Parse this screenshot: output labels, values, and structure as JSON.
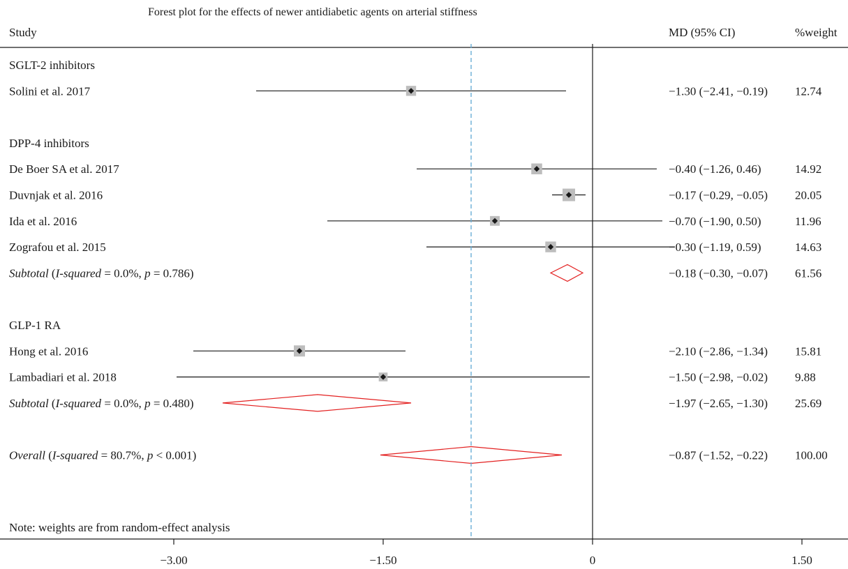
{
  "chart_data": {
    "type": "forest",
    "title": "Forest plot for the effects of newer antidiabetic agents on arterial stiffness",
    "columns": {
      "study": "Study",
      "effect": "MD (95% CI)",
      "weight": "%weight"
    },
    "x_ticks": [
      {
        "value": -3.0,
        "label": "−3.00"
      },
      {
        "value": -1.5,
        "label": "−1.50"
      },
      {
        "value": 0,
        "label": "0"
      },
      {
        "value": 1.5,
        "label": "1.50"
      }
    ],
    "xlim": [
      -4.5,
      2.2
    ],
    "overall_reference_line": -0.87,
    "rows": [
      {
        "kind": "header",
        "label": "SGLT-2 inhibitors"
      },
      {
        "kind": "study",
        "label": "Solini et al. 2017",
        "md": -1.3,
        "lo": -2.41,
        "hi": -0.19,
        "ci_text": "−1.30 (−2.41, −0.19)",
        "weight": "12.74"
      },
      {
        "kind": "blank"
      },
      {
        "kind": "header",
        "label": "DPP-4 inhibitors"
      },
      {
        "kind": "study",
        "label": " De Boer SA et al. 2017",
        "md": -0.4,
        "lo": -1.26,
        "hi": 0.46,
        "ci_text": "−0.40 (−1.26, 0.46)",
        "weight": "14.92"
      },
      {
        "kind": "study",
        "label": "Duvnjak et al. 2016",
        "md": -0.17,
        "lo": -0.29,
        "hi": -0.05,
        "ci_text": "−0.17 (−0.29, −0.05)",
        "weight": "20.05"
      },
      {
        "kind": "study",
        "label": "Ida et al. 2016",
        "md": -0.7,
        "lo": -1.9,
        "hi": 0.5,
        "ci_text": "−0.70 (−1.90, 0.50)",
        "weight": "11.96"
      },
      {
        "kind": "study",
        "label": "Zografou et al. 2015",
        "md": -0.3,
        "lo": -1.19,
        "hi": 0.59,
        "ci_text": "−0.30 (−1.19, 0.59)",
        "weight": "14.63"
      },
      {
        "kind": "subtotal",
        "label_parts": [
          "Subtotal",
          " (",
          "I-squared",
          " = 0.0%, ",
          "p",
          " = 0.786)"
        ],
        "md": -0.18,
        "lo": -0.3,
        "hi": -0.07,
        "ci_text": "−0.18 (−0.30, −0.07)",
        "weight": "61.56"
      },
      {
        "kind": "blank"
      },
      {
        "kind": "header",
        "label": "GLP-1 RA"
      },
      {
        "kind": "study",
        "label": "Hong et al. 2016",
        "md": -2.1,
        "lo": -2.86,
        "hi": -1.34,
        "ci_text": "−2.10 (−2.86, −1.34)",
        "weight": "15.81"
      },
      {
        "kind": "study",
        "label": "Lambadiari et al. 2018",
        "md": -1.5,
        "lo": -2.98,
        "hi": -0.02,
        "ci_text": "−1.50 (−2.98, −0.02)",
        "weight": "9.88"
      },
      {
        "kind": "subtotal",
        "label_parts": [
          "Subtotal",
          " (",
          "I-squared",
          " = 0.0%, ",
          "p",
          " = 0.480)"
        ],
        "md": -1.97,
        "lo": -2.65,
        "hi": -1.3,
        "ci_text": "−1.97 (−2.65, −1.30)",
        "weight": "25.69"
      },
      {
        "kind": "blank"
      },
      {
        "kind": "overall",
        "label_parts": [
          "Overall",
          " (",
          "I-squared",
          " = 80.7%, ",
          "p",
          " < 0.001)"
        ],
        "md": -0.87,
        "lo": -1.52,
        "hi": -0.22,
        "ci_text": "−0.87 (−1.52, −0.22)",
        "weight": "100.00"
      }
    ],
    "note": "Note: weights are from random-effect analysis",
    "colors": {
      "ci_line": "#1a1a1a",
      "weight_box": "#bdbdbd",
      "point": "#1a1a1a",
      "diamond": "#e32020",
      "reference_dashed": "#6aaed6",
      "axis": "#1a1a1a"
    }
  }
}
